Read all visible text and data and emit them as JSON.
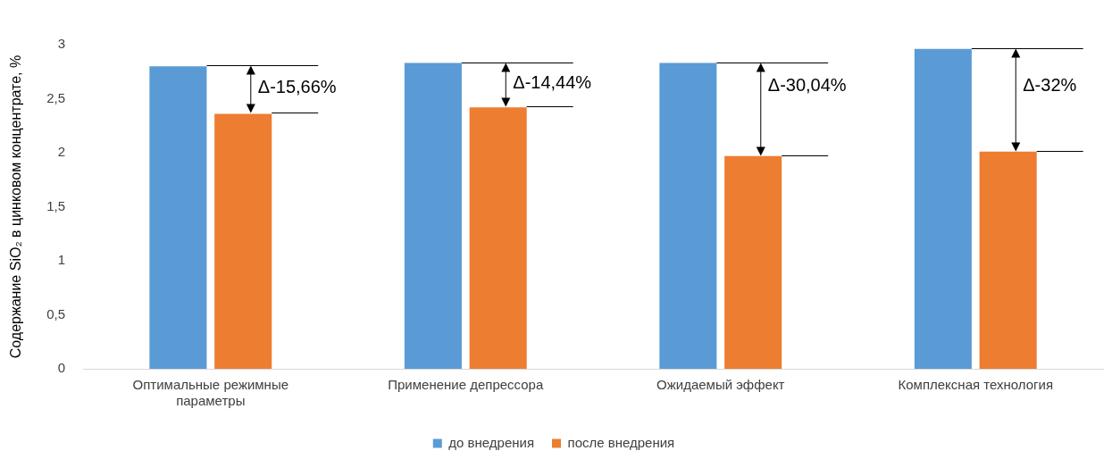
{
  "chart_data": {
    "type": "bar",
    "ylabel": "Содержание SiO₂ в цинковом концентрате, %",
    "categories": [
      "Оптимальные режимные параметры",
      "Применение депрессора",
      "Ожидаемый эффект",
      "Комплексная технология"
    ],
    "series": [
      {
        "name": "до внедрения",
        "color": "#5b9bd5",
        "values": [
          2.8,
          2.83,
          2.83,
          2.96
        ]
      },
      {
        "name": "после внедрения",
        "color": "#ed7d31",
        "values": [
          2.36,
          2.42,
          1.97,
          2.01
        ]
      }
    ],
    "ylim": [
      0,
      3
    ],
    "yticks": [
      0,
      {
        "value": 0.5,
        "label": "0,5"
      },
      1,
      {
        "value": 1.5,
        "label": "1,5"
      },
      2,
      {
        "value": 2.5,
        "label": "2,5"
      },
      3
    ],
    "grid": false,
    "legend": "bottom",
    "annotations": [
      {
        "text": "Δ-15,66%",
        "x": "Оптимальные режимные параметры",
        "y": 2.58
      },
      {
        "text": "Δ-14,44%",
        "x": "Применение депрессора",
        "y": 2.62
      },
      {
        "text": "Δ-30,04%",
        "x": "Ожидаемый эффект",
        "y": 2.6
      },
      {
        "text": "Δ-32%",
        "x": "Комплексная технология",
        "y": 2.6
      }
    ]
  }
}
